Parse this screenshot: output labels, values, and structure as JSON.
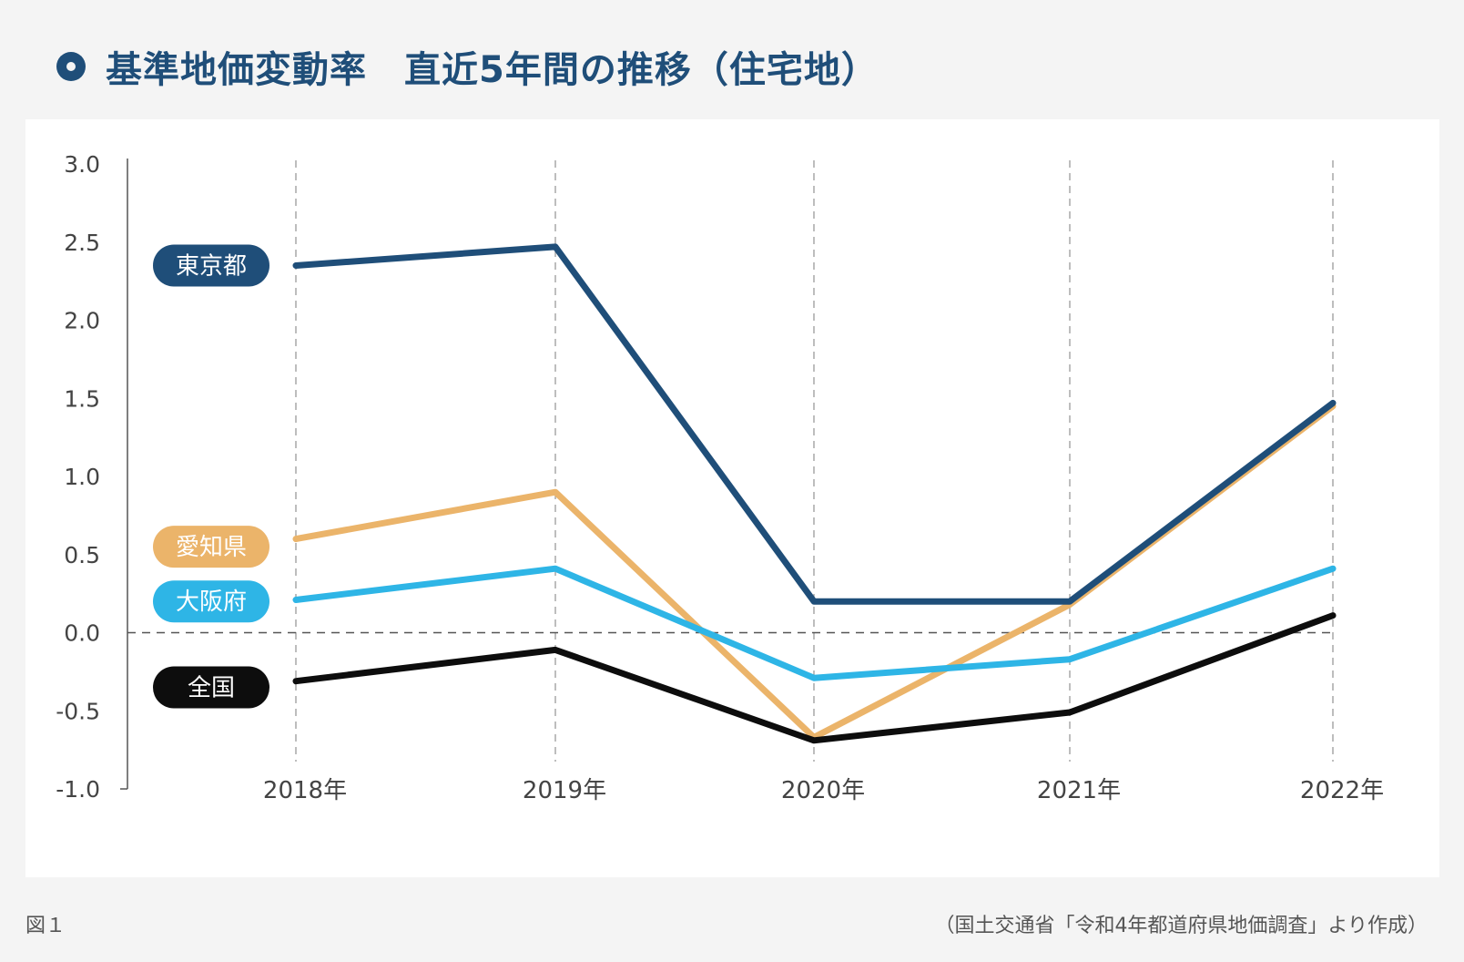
{
  "title": "基準地価変動率　直近5年間の推移（住宅地）",
  "figure_label": "図１",
  "source_note": "（国土交通省「令和4年都道府県地価調査」より作成）",
  "chart_data": {
    "type": "line",
    "title": "基準地価変動率　直近5年間の推移（住宅地）",
    "xlabel": "",
    "ylabel": "",
    "categories": [
      "2018年",
      "2019年",
      "2020年",
      "2021年",
      "2022年"
    ],
    "ylim": [
      -1.0,
      3.0
    ],
    "yticks": [
      "3.0",
      "2.5",
      "2.0",
      "1.5",
      "1.0",
      "0.5",
      "0.0",
      "-0.5",
      "-1.0"
    ],
    "ytick_values": [
      3.0,
      2.5,
      2.0,
      1.5,
      1.0,
      0.5,
      0.0,
      -0.5,
      -1.0
    ],
    "grid": "vertical-dashed",
    "zero_line": "dashed",
    "legend": "left-inline-labels",
    "series": [
      {
        "name": "愛知県",
        "color": "#ebb46a",
        "values": [
          0.6,
          0.9,
          -0.67,
          0.18,
          1.45
        ],
        "label_y": 0.55
      },
      {
        "name": "大阪府",
        "color": "#2eb5e6",
        "values": [
          0.21,
          0.41,
          -0.29,
          -0.17,
          0.41
        ],
        "label_y": 0.2
      },
      {
        "name": "全国",
        "color": "#0d0d0d",
        "values": [
          -0.31,
          -0.11,
          -0.69,
          -0.51,
          0.11
        ],
        "label_y": -0.35
      },
      {
        "name": "東京都",
        "color": "#1f4e79",
        "values": [
          2.35,
          2.47,
          0.2,
          0.2,
          1.47
        ],
        "label_y": 2.35
      }
    ]
  }
}
